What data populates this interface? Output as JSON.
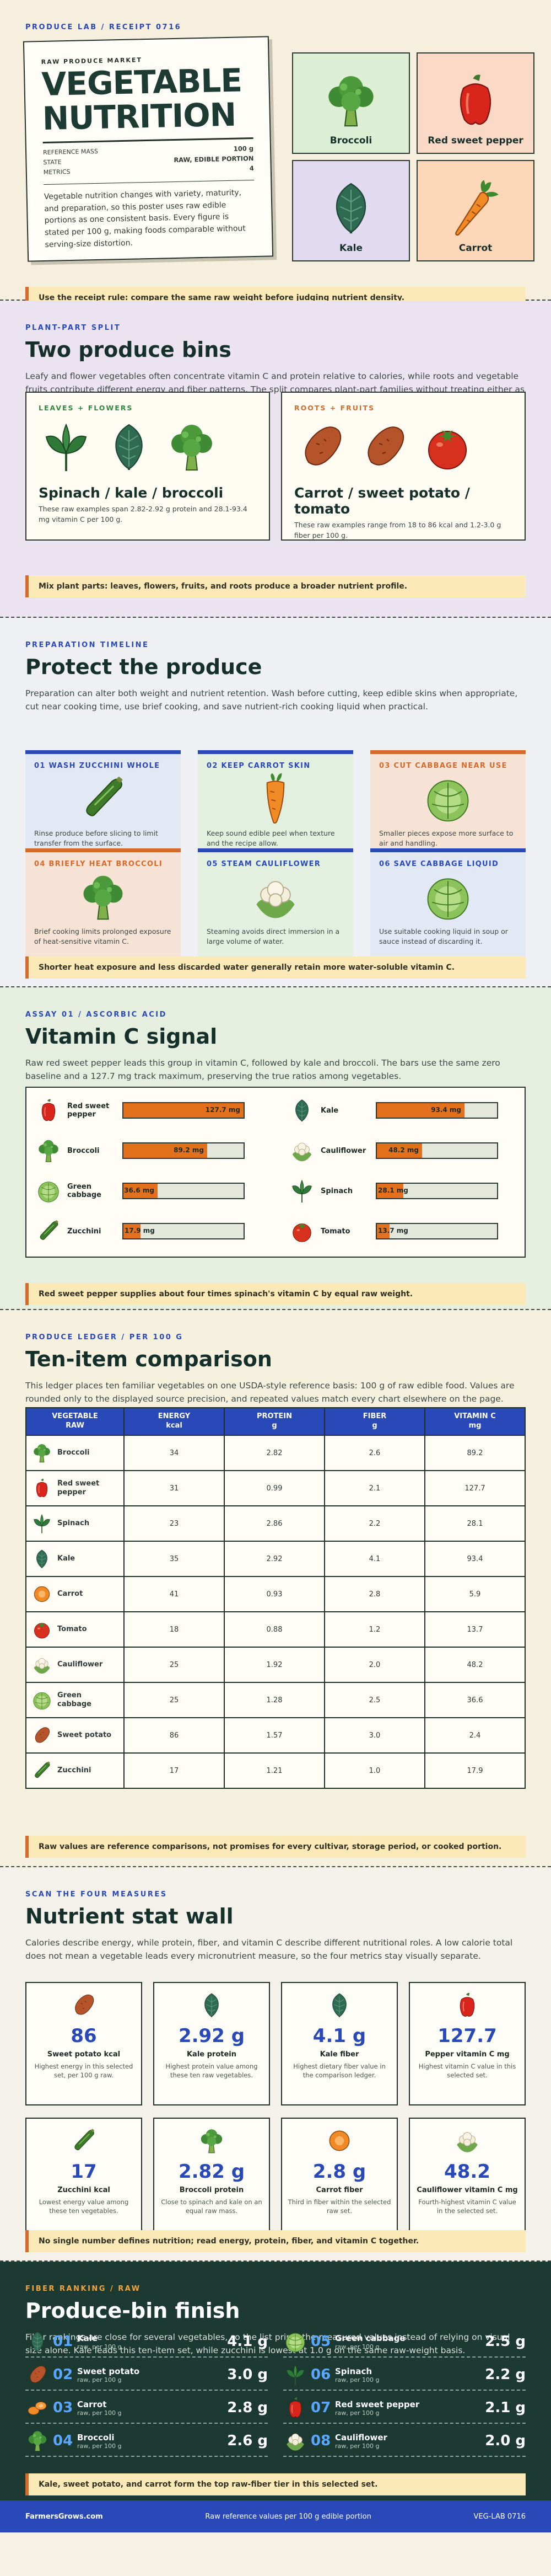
{
  "hero": {
    "eyebrow": "PRODUCE LAB / RECEIPT 0716",
    "receipt": {
      "kicker": "RAW PRODUCE MARKET",
      "title_line1": "VEGETABLE",
      "title_line2": "NUTRITION",
      "rows": [
        {
          "label": "REFERENCE MASS",
          "value": "100 g"
        },
        {
          "label": "STATE",
          "value": "RAW, EDIBLE PORTION"
        },
        {
          "label": "METRICS",
          "value": "4"
        }
      ],
      "text": "Vegetable nutrition changes with variety, maturity, and preparation, so this poster uses raw edible portions as one consistent basis. Every figure is stated per 100 g, making foods comparable without serving-size distortion."
    },
    "tiles": [
      {
        "label": "Broccoli",
        "color": "#dcefd4",
        "icon": "broccoli-icon"
      },
      {
        "label": "Red sweet pepper",
        "color": "#fbd9c7",
        "icon": "red-pepper-icon"
      },
      {
        "label": "Kale",
        "color": "#e2daf0",
        "icon": "kale-icon"
      },
      {
        "label": "Carrot",
        "color": "#fdd8b8",
        "icon": "carrot-icon"
      }
    ],
    "note": "Use the receipt rule: compare the same raw weight before judging nutrient density."
  },
  "split": {
    "eyebrow": "PLANT-PART SPLIT",
    "title": "Two produce bins",
    "lede": "Leafy and flower vegetables often concentrate vitamin C and protein relative to calories, while roots and vegetable fruits contribute different energy and fiber patterns. The split compares plant-part families without treating either as nutritionally complete.",
    "bins": [
      {
        "tag": "LEAVES + FLOWERS",
        "tag_color": "#2f8a3c",
        "title": "Spinach / kale / broccoli",
        "sub": "These raw examples span 2.82-2.92 g protein and 28.1-93.4 mg vitamin C per 100 g."
      },
      {
        "tag": "ROOTS + FRUITS",
        "tag_color": "#d66a2a",
        "title": "Carrot / sweet potato / tomato",
        "sub": "These raw examples range from 18 to 86 kcal and 1.2-3.0 g fiber per 100 g."
      }
    ],
    "note": "Mix plant parts: leaves, flowers, fruits, and roots produce a broader nutrient profile."
  },
  "timeline": {
    "eyebrow": "PREPARATION TIMELINE",
    "title": "Protect the produce",
    "lede": "Preparation can alter both weight and nutrient retention. Wash before cutting, keep edible skins when appropriate, cut near cooking time, use brief cooking, and save nutrient-rich cooking liquid when practical.",
    "steps": [
      {
        "title": "01 WASH ZUCCHINI WHOLE",
        "desc": "Rinse produce before slicing to limit transfer from the surface.",
        "icon": "zucchini-icon",
        "bg": "#e3e8f5",
        "accent": "#2a49b8"
      },
      {
        "title": "02 KEEP CARROT SKIN",
        "desc": "Keep sound edible peel when texture and the recipe allow.",
        "icon": "carrot-icon",
        "bg": "#e3f0e0",
        "accent": "#2a49b8"
      },
      {
        "title": "03 CUT CABBAGE NEAR USE",
        "desc": "Smaller pieces expose more surface to air and handling.",
        "icon": "cabbage-icon",
        "bg": "#f7e3d6",
        "accent": "#d66a2a"
      },
      {
        "title": "04 BRIEFLY HEAT BROCCOLI",
        "desc": "Brief cooking limits prolonged exposure of heat-sensitive vitamin C.",
        "icon": "broccoli-icon",
        "bg": "#f7e3d6",
        "accent": "#d66a2a"
      },
      {
        "title": "05 STEAM CAULIFLOWER",
        "desc": "Steaming avoids direct immersion in a large volume of water.",
        "icon": "cauliflower-icon",
        "bg": "#e3f0e0",
        "accent": "#2a49b8"
      },
      {
        "title": "06 SAVE CABBAGE LIQUID",
        "desc": "Use suitable cooking liquid in soup or sauce instead of discarding it.",
        "icon": "cabbage-icon",
        "bg": "#e3e8f5",
        "accent": "#2a49b8"
      }
    ],
    "note": "Shorter heat exposure and less discarded water generally retain more water-soluble vitamin C."
  },
  "vitc": {
    "eyebrow": "ASSAY 01 / ASCORBIC ACID",
    "title": "Vitamin C signal",
    "lede": "Raw red sweet pepper leads this group in vitamin C, followed by kale and broccoli. The bars use the same zero baseline and a 127.7 mg track maximum, preserving the true ratios among vegetables.",
    "max": 127.7,
    "note": "Red sweet pepper supplies about four times spinach's vitamin C by equal raw weight."
  },
  "chart_data": {
    "type": "bar",
    "title": "Vitamin C signal",
    "categories": [
      "Red sweet pepper",
      "Kale",
      "Broccoli",
      "Cauliflower",
      "Green cabbage",
      "Spinach",
      "Zucchini",
      "Tomato"
    ],
    "series": [
      {
        "values": [
          127.7,
          93.4,
          89.2,
          48.2,
          36.6,
          28.1,
          17.9,
          13.7
        ]
      }
    ],
    "labels": [
      "127.7 mg",
      "93.4 mg",
      "89.2 mg",
      "48.2 mg",
      "36.6 mg",
      "28.1 mg",
      "17.9 mg",
      "13.7 mg"
    ],
    "icons": [
      "red-pepper-icon",
      "kale-icon",
      "broccoli-icon",
      "cauliflower-icon",
      "cabbage-icon",
      "spinach-icon",
      "zucchini-icon",
      "tomato-icon"
    ],
    "ylim": [
      0,
      127.7
    ]
  },
  "ledger": {
    "eyebrow": "PRODUCE LEDGER / PER 100 G",
    "title": "Ten-item comparison",
    "lede": "This ledger places ten familiar vegetables on one USDA-style reference basis: 100 g of raw edible food. Values are rounded only to the displayed source precision, and repeated values match every chart elsewhere on the page.",
    "headers": [
      "VEGETABLE\nRAW",
      "ENERGY\nkcal",
      "PROTEIN\ng",
      "FIBER\ng",
      "VITAMIN C\nmg"
    ],
    "rows": [
      {
        "name": "Broccoli",
        "icon": "broccoli-icon",
        "vals": [
          "34",
          "2.82",
          "2.6",
          "89.2"
        ]
      },
      {
        "name": "Red sweet pepper",
        "icon": "red-pepper-icon",
        "vals": [
          "31",
          "0.99",
          "2.1",
          "127.7"
        ]
      },
      {
        "name": "Spinach",
        "icon": "spinach-icon",
        "vals": [
          "23",
          "2.86",
          "2.2",
          "28.1"
        ]
      },
      {
        "name": "Kale",
        "icon": "kale-icon",
        "vals": [
          "35",
          "2.92",
          "4.1",
          "93.4"
        ]
      },
      {
        "name": "Carrot",
        "icon": "carrot-slice-icon",
        "vals": [
          "41",
          "0.93",
          "2.8",
          "5.9"
        ]
      },
      {
        "name": "Tomato",
        "icon": "tomato-icon",
        "vals": [
          "18",
          "0.88",
          "1.2",
          "13.7"
        ]
      },
      {
        "name": "Cauliflower",
        "icon": "cauliflower-icon",
        "vals": [
          "25",
          "1.92",
          "2.0",
          "48.2"
        ]
      },
      {
        "name": "Green cabbage",
        "icon": "cabbage-icon",
        "vals": [
          "25",
          "1.28",
          "2.5",
          "36.6"
        ]
      },
      {
        "name": "Sweet potato",
        "icon": "sweet-potato-icon",
        "vals": [
          "86",
          "1.57",
          "3.0",
          "2.4"
        ]
      },
      {
        "name": "Zucchini",
        "icon": "zucchini-icon",
        "vals": [
          "17",
          "1.21",
          "1.0",
          "17.9"
        ]
      }
    ],
    "note": "Raw values are reference comparisons, not promises for every cultivar, storage period, or cooked portion."
  },
  "statwall": {
    "eyebrow": "SCAN THE FOUR MEASURES",
    "title": "Nutrient stat wall",
    "lede": "Calories describe energy, while protein, fiber, and vitamin C describe different nutritional roles. A low calorie total does not mean a vegetable leads every micronutrient measure, so the four metrics stay visually separate.",
    "cards": [
      {
        "num": "86",
        "label": "Sweet potato kcal",
        "desc": "Highest energy in this selected set, per 100 g raw.",
        "icon": "sweet-potato-icon"
      },
      {
        "num": "2.92 g",
        "label": "Kale protein",
        "desc": "Highest protein value among these ten raw vegetables.",
        "icon": "kale-icon"
      },
      {
        "num": "4.1 g",
        "label": "Kale fiber",
        "desc": "Highest dietary fiber value in the comparison ledger.",
        "icon": "kale-icon"
      },
      {
        "num": "127.7",
        "label": "Pepper vitamin C mg",
        "desc": "Highest vitamin C value in this selected set.",
        "icon": "red-pepper-icon"
      },
      {
        "num": "17",
        "label": "Zucchini kcal",
        "desc": "Lowest energy value among these ten vegetables.",
        "icon": "zucchini-icon"
      },
      {
        "num": "2.82 g",
        "label": "Broccoli protein",
        "desc": "Close to spinach and kale on an equal raw mass.",
        "icon": "broccoli-icon"
      },
      {
        "num": "2.8 g",
        "label": "Carrot fiber",
        "desc": "Third in fiber within the selected raw set.",
        "icon": "carrot-slice-icon"
      },
      {
        "num": "48.2",
        "label": "Cauliflower vitamin C mg",
        "desc": "Fourth-highest vitamin C value in the selected set.",
        "icon": "cauliflower-icon"
      }
    ],
    "note": "No single number defines nutrition; read energy, protein, fiber, and vitamin C together."
  },
  "finish": {
    "eyebrow": "FIBER RANKING / RAW",
    "title": "Produce-bin finish",
    "lede": "Fiber rankings are close for several vegetables, so the list prints the measured values instead of relying on visual size alone. Kale leads this ten-item set, while zucchini is lowest at 1.0 g on the same raw-weight basis.",
    "ranks": [
      {
        "no": "01",
        "name": "Kale",
        "sub": "raw, per 100 g",
        "value": "4.1 g",
        "icon": "kale-icon"
      },
      {
        "no": "02",
        "name": "Sweet potato",
        "sub": "raw, per 100 g",
        "value": "3.0 g",
        "icon": "sweet-potato-icon"
      },
      {
        "no": "03",
        "name": "Carrot",
        "sub": "raw, per 100 g",
        "value": "2.8 g",
        "icon": "carrot-slices-icon"
      },
      {
        "no": "04",
        "name": "Broccoli",
        "sub": "raw, per 100 g",
        "value": "2.6 g",
        "icon": "broccoli-icon"
      },
      {
        "no": "05",
        "name": "Green cabbage",
        "sub": "raw, per 100 g",
        "value": "2.5 g",
        "icon": "cabbage-icon"
      },
      {
        "no": "06",
        "name": "Spinach",
        "sub": "raw, per 100 g",
        "value": "2.2 g",
        "icon": "spinach-icon"
      },
      {
        "no": "07",
        "name": "Red sweet pepper",
        "sub": "raw, per 100 g",
        "value": "2.1 g",
        "icon": "red-pepper-icon"
      },
      {
        "no": "08",
        "name": "Cauliflower",
        "sub": "raw, per 100 g",
        "value": "2.0 g",
        "icon": "cauliflower-icon"
      }
    ],
    "note": "Kale, sweet potato, and carrot form the top raw-fiber tier in this selected set.",
    "footer": {
      "brand": "FarmersGrows.com",
      "center": "Raw reference values per 100 g edible portion",
      "right": "VEG-LAB 0716"
    }
  }
}
